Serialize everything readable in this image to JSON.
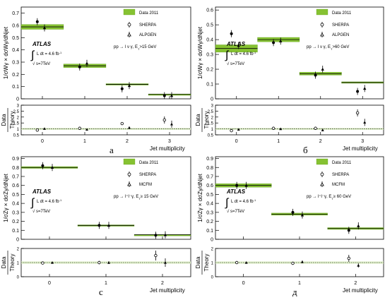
{
  "chart_data": [
    {
      "panel": "а",
      "type": "scatter",
      "final_state": "pp → l ν γ, E",
      "et_cut": ">15 GeV",
      "ylabel": "1/σWγ × dσWγ/dNjet",
      "ratio_ylabel": [
        "Data",
        "Theory"
      ],
      "xlabel": "Jet multiplicity",
      "x_ticks": [
        "0",
        "1",
        "2",
        "3"
      ],
      "y_ticks": [
        "0",
        "0.1",
        "0.2",
        "0.3",
        "0.4",
        "0.5",
        "0.6",
        "0.7"
      ],
      "ratio_ticks": [
        "0.5",
        "1",
        "1.5",
        "2",
        "2.5",
        "3"
      ],
      "ylim": [
        0,
        0.75
      ],
      "ratio_ylim": [
        0.5,
        3.0
      ],
      "x": [
        0,
        1,
        2,
        3
      ],
      "series": [
        {
          "name": "Data 2011",
          "values": [
            0.588,
            0.27,
            0.118,
            0.036
          ],
          "errors": [
            0.02,
            0.015,
            0.006,
            0.004
          ]
        },
        {
          "name": "SHERPA",
          "values": [
            0.63,
            0.26,
            0.082,
            0.026
          ]
        },
        {
          "name": "ALPGEN",
          "values": [
            0.58,
            0.29,
            0.108,
            0.026
          ]
        }
      ],
      "ratio": [
        {
          "name": "SHERPA",
          "values": [
            0.9,
            1.05,
            1.45,
            1.75
          ],
          "errors": [
            0.08,
            0.08,
            0.12,
            0.3
          ]
        },
        {
          "name": "ALPGEN",
          "values": [
            1.02,
            0.95,
            1.1,
            1.4
          ],
          "errors": [
            0.06,
            0.08,
            0.1,
            0.3
          ]
        }
      ]
    },
    {
      "panel": "б",
      "type": "scatter",
      "final_state": "pp → l ν γ, E",
      "et_cut": ">60 GeV",
      "ylabel": "1/σWγ × dσWγ/dNjet",
      "ratio_ylabel": [
        "Data",
        "Theory"
      ],
      "xlabel": "Jet multiplicity",
      "x_ticks": [
        "0",
        "1",
        "2",
        "3"
      ],
      "y_ticks": [
        "0",
        "0.1",
        "0.2",
        "0.3",
        "0.4",
        "0.5",
        "0.6"
      ],
      "ratio_ticks": [
        "0.5",
        "1",
        "1.5",
        "2",
        "2.5",
        "3"
      ],
      "ylim": [
        0,
        0.62
      ],
      "ratio_ylim": [
        0.5,
        3.0
      ],
      "x": [
        0,
        1,
        2,
        3
      ],
      "series": [
        {
          "name": "Data 2011",
          "values": [
            0.34,
            0.4,
            0.17,
            0.11
          ],
          "errors": [
            0.025,
            0.015,
            0.01,
            0.005
          ]
        },
        {
          "name": "SHERPA",
          "values": [
            0.44,
            0.38,
            0.16,
            0.05
          ]
        },
        {
          "name": "ALPGEN",
          "values": [
            0.36,
            0.39,
            0.2,
            0.07
          ]
        }
      ],
      "ratio": [
        {
          "name": "SHERPA",
          "values": [
            0.85,
            1.05,
            1.05,
            2.35
          ],
          "errors": [
            0.08,
            0.08,
            0.1,
            0.3
          ]
        },
        {
          "name": "ALPGEN",
          "values": [
            0.95,
            1.0,
            0.9,
            1.55
          ],
          "errors": [
            0.06,
            0.08,
            0.1,
            0.3
          ]
        }
      ]
    },
    {
      "panel": "c",
      "type": "scatter",
      "final_state": "pp → l⁺l⁻γ, E",
      "et_cut": "≥ 15 GeV",
      "ylabel": "1/σZγ × dσZγ/dNjet",
      "ratio_ylabel": [
        "Data",
        "Theory"
      ],
      "xlabel": "Jet multiplicity",
      "x_ticks": [
        "0",
        "1",
        "2"
      ],
      "y_ticks": [
        "0",
        "0.1",
        "0.2",
        "0.3",
        "0.4",
        "0.5",
        "0.6",
        "0.7",
        "0.8",
        "0.9"
      ],
      "ratio_ticks": [
        "0",
        "1",
        "2"
      ],
      "ylim": [
        0,
        0.92
      ],
      "ratio_ylim": [
        0,
        2.0
      ],
      "x": [
        0,
        1,
        2
      ],
      "series": [
        {
          "name": "Data 2011",
          "values": [
            0.8,
            0.155,
            0.05
          ],
          "errors": [
            0.01,
            0.006,
            0.004
          ]
        },
        {
          "name": "SHERPA",
          "values": [
            0.82,
            0.155,
            0.045
          ]
        },
        {
          "name": "MCFM",
          "values": [
            0.8,
            0.155,
            0.05
          ]
        }
      ],
      "ratio": [
        {
          "name": "SHERPA",
          "values": [
            0.97,
            1.0,
            1.5
          ],
          "errors": [
            0.08,
            0.12,
            0.35
          ]
        },
        {
          "name": "MCFM",
          "values": [
            1.0,
            1.0,
            1.0
          ],
          "errors": [
            0.06,
            0.1,
            0.3
          ]
        }
      ]
    },
    {
      "panel": "д",
      "type": "scatter",
      "final_state": "pp → l⁺l⁻γ, E",
      "et_cut": "≥ 60 GeV",
      "ylabel": "1/σZγ × dσZγ/dNjet",
      "ratio_ylabel": [
        "Data",
        "Theory"
      ],
      "xlabel": "Jet multiplicity",
      "x_ticks": [
        "0",
        "1",
        "2"
      ],
      "y_ticks": [
        "0",
        "0.1",
        "0.2",
        "0.3",
        "0.4",
        "0.5",
        "0.6",
        "0.7",
        "0.8",
        "0.9"
      ],
      "ratio_ticks": [
        "0",
        "1",
        "2"
      ],
      "ylim": [
        0,
        0.92
      ],
      "ratio_ylim": [
        0,
        2.0
      ],
      "x": [
        0,
        1,
        2
      ],
      "series": [
        {
          "name": "Data 2011",
          "values": [
            0.6,
            0.28,
            0.12
          ],
          "errors": [
            0.02,
            0.012,
            0.01
          ]
        },
        {
          "name": "SHERPA",
          "values": [
            0.6,
            0.3,
            0.1
          ]
        },
        {
          "name": "MCFM",
          "values": [
            0.6,
            0.27,
            0.15
          ]
        }
      ],
      "ratio": [
        {
          "name": "SHERPA",
          "values": [
            1.0,
            0.95,
            1.3
          ],
          "errors": [
            0.08,
            0.1,
            0.25
          ]
        },
        {
          "name": "MCFM",
          "values": [
            1.0,
            1.05,
            0.8
          ],
          "errors": [
            0.06,
            0.1,
            0.15
          ]
        }
      ]
    }
  ],
  "legend_data": "Data 2011",
  "atlas_label": "ATLAS",
  "lumi_label": "L dt = 4.6 fb",
  "lumi_sup": "-1",
  "sqrt_label": "s=7TeV"
}
